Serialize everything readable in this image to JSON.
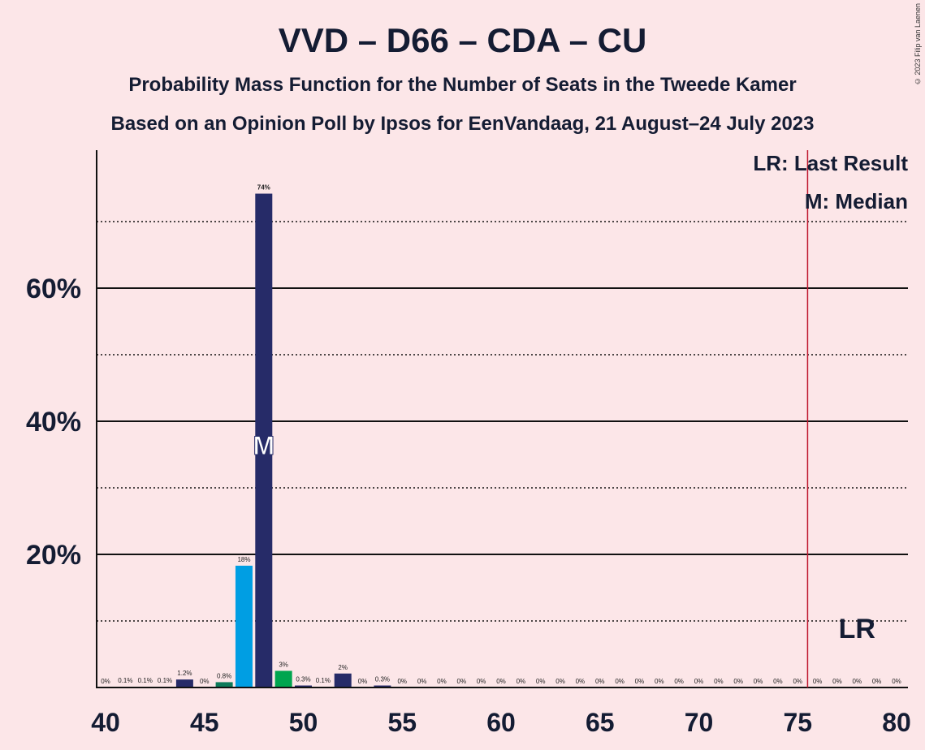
{
  "title": "VVD – D66 – CDA – CU",
  "subtitle1": "Probability Mass Function for the Number of Seats in the Tweede Kamer",
  "subtitle2": "Based on an Opinion Poll by Ipsos for EenVandaag, 21 August–24 July 2023",
  "copyright": "© 2023 Filip van Laenen",
  "legend": {
    "last_result": "LR: Last Result",
    "median": "M: Median"
  },
  "markers": {
    "median_label": "M",
    "last_result_label": "LR"
  },
  "colors": {
    "background": "#fce6e8",
    "vvd": "#262b68",
    "d66": "#00a54f",
    "cda": "#009ee3",
    "cu": "#0d7a5a",
    "majority_line": "#c0192f"
  },
  "chart_data": {
    "type": "bar",
    "xlim": [
      40,
      80
    ],
    "ylim": [
      0,
      80
    ],
    "xticks": [
      40,
      45,
      50,
      55,
      60,
      65,
      70,
      75,
      80
    ],
    "yticks_major": [
      20,
      40,
      60
    ],
    "ytick_labels": [
      "20%",
      "40%",
      "60%"
    ],
    "y_dotted_lines": [
      10,
      30,
      50,
      70
    ],
    "grid": true,
    "median_seat": 48,
    "last_result_seat": 78,
    "majority_line_x": 75.5,
    "bars": [
      {
        "seat": 40,
        "value": 0.0,
        "label": "0%",
        "color": "#262b68"
      },
      {
        "seat": 41,
        "value": 0.1,
        "label": "0.1%",
        "color": "#262b68"
      },
      {
        "seat": 42,
        "value": 0.1,
        "label": "0.1%",
        "color": "#262b68"
      },
      {
        "seat": 43,
        "value": 0.1,
        "label": "0.1%",
        "color": "#262b68"
      },
      {
        "seat": 44,
        "value": 1.2,
        "label": "1.2%",
        "color": "#262b68"
      },
      {
        "seat": 45,
        "value": 0.0,
        "label": "0%",
        "color": "#262b68"
      },
      {
        "seat": 46,
        "value": 0.8,
        "label": "0.8%",
        "color": "#0d7a5a"
      },
      {
        "seat": 47,
        "value": 18.3,
        "label": "18%",
        "color": "#009ee3"
      },
      {
        "seat": 48,
        "value": 74.2,
        "label": "74%",
        "color": "#262b68"
      },
      {
        "seat": 49,
        "value": 2.5,
        "label": "3%",
        "color": "#00a54f"
      },
      {
        "seat": 50,
        "value": 0.3,
        "label": "0.3%",
        "color": "#262b68"
      },
      {
        "seat": 51,
        "value": 0.1,
        "label": "0.1%",
        "color": "#262b68"
      },
      {
        "seat": 52,
        "value": 2.1,
        "label": "2%",
        "color": "#262b68"
      },
      {
        "seat": 53,
        "value": 0.0,
        "label": "0%",
        "color": "#262b68"
      },
      {
        "seat": 54,
        "value": 0.3,
        "label": "0.3%",
        "color": "#262b68"
      },
      {
        "seat": 55,
        "value": 0.0,
        "label": "0%",
        "color": "#262b68"
      },
      {
        "seat": 56,
        "value": 0.0,
        "label": "0%",
        "color": "#262b68"
      },
      {
        "seat": 57,
        "value": 0.0,
        "label": "0%",
        "color": "#262b68"
      },
      {
        "seat": 58,
        "value": 0.0,
        "label": "0%",
        "color": "#262b68"
      },
      {
        "seat": 59,
        "value": 0.0,
        "label": "0%",
        "color": "#262b68"
      },
      {
        "seat": 60,
        "value": 0.0,
        "label": "0%",
        "color": "#262b68"
      },
      {
        "seat": 61,
        "value": 0.0,
        "label": "0%",
        "color": "#262b68"
      },
      {
        "seat": 62,
        "value": 0.0,
        "label": "0%",
        "color": "#262b68"
      },
      {
        "seat": 63,
        "value": 0.0,
        "label": "0%",
        "color": "#262b68"
      },
      {
        "seat": 64,
        "value": 0.0,
        "label": "0%",
        "color": "#262b68"
      },
      {
        "seat": 65,
        "value": 0.0,
        "label": "0%",
        "color": "#262b68"
      },
      {
        "seat": 66,
        "value": 0.0,
        "label": "0%",
        "color": "#262b68"
      },
      {
        "seat": 67,
        "value": 0.0,
        "label": "0%",
        "color": "#262b68"
      },
      {
        "seat": 68,
        "value": 0.0,
        "label": "0%",
        "color": "#262b68"
      },
      {
        "seat": 69,
        "value": 0.0,
        "label": "0%",
        "color": "#262b68"
      },
      {
        "seat": 70,
        "value": 0.0,
        "label": "0%",
        "color": "#262b68"
      },
      {
        "seat": 71,
        "value": 0.0,
        "label": "0%",
        "color": "#262b68"
      },
      {
        "seat": 72,
        "value": 0.0,
        "label": "0%",
        "color": "#262b68"
      },
      {
        "seat": 73,
        "value": 0.0,
        "label": "0%",
        "color": "#262b68"
      },
      {
        "seat": 74,
        "value": 0.0,
        "label": "0%",
        "color": "#262b68"
      },
      {
        "seat": 75,
        "value": 0.0,
        "label": "0%",
        "color": "#262b68"
      },
      {
        "seat": 76,
        "value": 0.0,
        "label": "0%",
        "color": "#262b68"
      },
      {
        "seat": 77,
        "value": 0.0,
        "label": "0%",
        "color": "#262b68"
      },
      {
        "seat": 78,
        "value": 0.0,
        "label": "0%",
        "color": "#262b68"
      },
      {
        "seat": 79,
        "value": 0.0,
        "label": "0%",
        "color": "#262b68"
      },
      {
        "seat": 80,
        "value": 0.0,
        "label": "0%",
        "color": "#262b68"
      }
    ]
  }
}
